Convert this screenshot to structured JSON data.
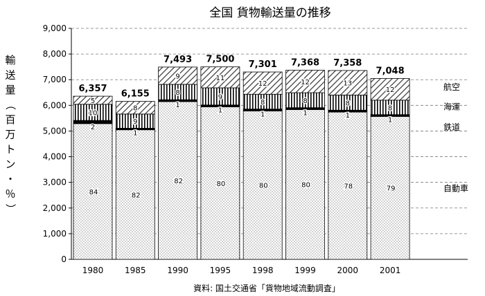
{
  "chart_data": {
    "type": "bar",
    "stacked": true,
    "title": "全国 貨物輸送量の推移",
    "ylabel": "輸送量（百万トン・％）",
    "source": "資料: 国土交通省「貨物地域流動調査」",
    "ylim": [
      0,
      9000
    ],
    "yticks": [
      "0",
      "1,000",
      "2,000",
      "3,000",
      "4,000",
      "5,000",
      "6,000",
      "7,000",
      "8,000",
      "9,000"
    ],
    "categories": [
      "1980",
      "1985",
      "1990",
      "1995",
      "1998",
      "1999",
      "2000",
      "2001"
    ],
    "totals": [
      6357,
      6155,
      7493,
      7500,
      7301,
      7368,
      7358,
      7048
    ],
    "total_labels": [
      "6,357",
      "6,155",
      "7,493",
      "7,500",
      "7,301",
      "7,368",
      "7,358",
      "7,048"
    ],
    "series": [
      {
        "name": "自動車",
        "percent": [
          84,
          82,
          82,
          80,
          80,
          80,
          78,
          79
        ],
        "pattern": "dots"
      },
      {
        "name": "鉄道",
        "percent": [
          2,
          1,
          1,
          1,
          1,
          1,
          1,
          1
        ],
        "pattern": "solid"
      },
      {
        "name": "海運",
        "percent": [
          10,
          9,
          8,
          9,
          8,
          8,
          8,
          8
        ],
        "pattern": "vlines"
      },
      {
        "name": "航空",
        "percent": [
          5,
          8,
          9,
          11,
          12,
          12,
          13,
          12
        ],
        "pattern": "diag"
      }
    ],
    "grid": true
  }
}
